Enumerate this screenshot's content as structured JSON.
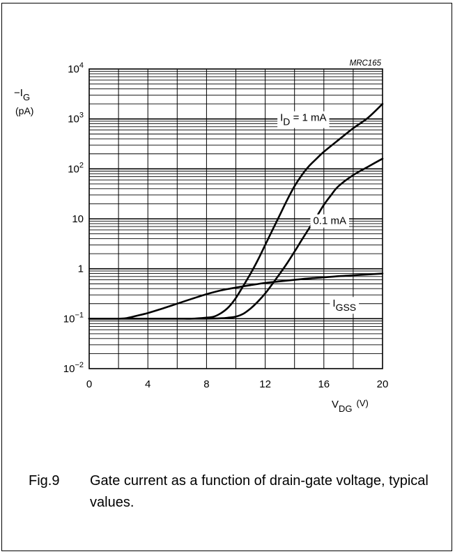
{
  "chart_data": {
    "type": "line",
    "code": "MRC165",
    "yscale": "log",
    "xlim": [
      0,
      20
    ],
    "ylim": [
      0.01,
      10000
    ],
    "grid": true,
    "ylabel": {
      "main": "−I",
      "sub": "G",
      "unit": "(pA)"
    },
    "xlabel": {
      "main": "V",
      "sub": "DG",
      "unit": "(V)"
    },
    "x_ticks": [
      {
        "value": 0,
        "label": "0"
      },
      {
        "value": 4,
        "label": "4"
      },
      {
        "value": 8,
        "label": "8"
      },
      {
        "value": 12,
        "label": "12"
      },
      {
        "value": 16,
        "label": "16"
      },
      {
        "value": 20,
        "label": "20"
      }
    ],
    "y_ticks": [
      {
        "value": 0.01,
        "base": "10",
        "exp": "−2"
      },
      {
        "value": 0.1,
        "base": "10",
        "exp": "−1"
      },
      {
        "value": 1,
        "base": "1",
        "exp": ""
      },
      {
        "value": 10,
        "base": "10",
        "exp": ""
      },
      {
        "value": 100,
        "base": "10",
        "exp": "2"
      },
      {
        "value": 1000,
        "base": "10",
        "exp": "3"
      },
      {
        "value": 10000,
        "base": "10",
        "exp": "4"
      }
    ],
    "series": [
      {
        "name": "ID = 1 mA",
        "label_main": "I",
        "label_sub": "D",
        "label_rest": " = 1 mA",
        "label_at": [
          14.6,
          1100
        ],
        "x": [
          0,
          2,
          4,
          6,
          7,
          8,
          8.5,
          9,
          9.5,
          10,
          10.5,
          11,
          11.5,
          12,
          12.5,
          13,
          13.5,
          14,
          14.5,
          15,
          15.5,
          16,
          17,
          18,
          19,
          20
        ],
        "y": [
          0.1,
          0.1,
          0.1,
          0.1,
          0.1,
          0.105,
          0.11,
          0.13,
          0.17,
          0.26,
          0.45,
          0.8,
          1.5,
          3,
          6,
          12,
          24,
          45,
          75,
          115,
          160,
          220,
          380,
          650,
          1050,
          2000
        ]
      },
      {
        "name": "0.1 mA",
        "label_main": "0.1 mA",
        "label_sub": "",
        "label_rest": "",
        "label_at": [
          16.4,
          9.5
        ],
        "x": [
          0,
          2,
          4,
          6,
          8,
          9,
          9.5,
          10,
          10.5,
          11,
          11.5,
          12,
          12.5,
          13,
          13.5,
          14,
          14.5,
          15,
          15.5,
          16,
          16.5,
          17,
          18,
          19,
          20
        ],
        "y": [
          0.1,
          0.1,
          0.1,
          0.1,
          0.1,
          0.102,
          0.105,
          0.11,
          0.125,
          0.16,
          0.22,
          0.32,
          0.5,
          0.8,
          1.3,
          2.2,
          3.8,
          6.5,
          11,
          19,
          30,
          45,
          75,
          110,
          160
        ]
      },
      {
        "name": "IGSS",
        "label_main": "I",
        "label_sub": "GSS",
        "label_rest": "",
        "label_at": [
          17.4,
          0.21
        ],
        "x": [
          0,
          1,
          2,
          2.5,
          3,
          4,
          5,
          6,
          7,
          8,
          9,
          10,
          11,
          12,
          13,
          14,
          15,
          16,
          17,
          18,
          19,
          20
        ],
        "y": [
          0.1,
          0.1,
          0.1,
          0.102,
          0.11,
          0.13,
          0.16,
          0.2,
          0.25,
          0.31,
          0.37,
          0.42,
          0.47,
          0.52,
          0.56,
          0.6,
          0.64,
          0.67,
          0.71,
          0.74,
          0.77,
          0.8
        ]
      }
    ]
  },
  "caption": {
    "number": "Fig.9",
    "text": "Gate current as a function of drain-gate voltage, typical values."
  }
}
